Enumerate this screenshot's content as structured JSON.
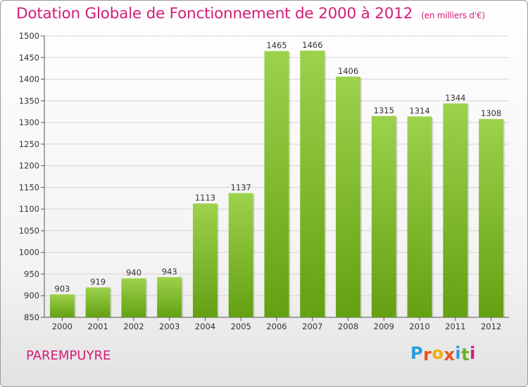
{
  "title": "Dotation Globale de Fonctionnement de 2000 à 2012",
  "subtitle": "(en milliers d'€)",
  "commune": "PAREMPUYRE",
  "logo": {
    "text": "Proxiti",
    "colors": [
      "#2a9fd8",
      "#e8531e",
      "#f2b100",
      "#e8531e",
      "#2a9fd8",
      "#69b428",
      "#d41c76"
    ]
  },
  "colors": {
    "bar_light": "#9dd24c",
    "bar_dark": "#64a012",
    "accent": "#d41c76"
  },
  "chart_data": {
    "type": "bar",
    "title": "Dotation Globale de Fonctionnement de 2000 à 2012",
    "subtitle": "(en milliers d'€)",
    "xlabel": "",
    "ylabel": "",
    "categories": [
      "2000",
      "2001",
      "2002",
      "2003",
      "2004",
      "2005",
      "2006",
      "2007",
      "2008",
      "2009",
      "2010",
      "2011",
      "2012"
    ],
    "values": [
      903,
      919,
      940,
      943,
      1113,
      1137,
      1465,
      1466,
      1406,
      1315,
      1314,
      1344,
      1308
    ],
    "ylim": [
      850,
      1500
    ],
    "yticks": [
      850,
      900,
      950,
      1000,
      1050,
      1100,
      1150,
      1200,
      1250,
      1300,
      1350,
      1400,
      1450,
      1500
    ],
    "grid": true,
    "legend": "none"
  }
}
